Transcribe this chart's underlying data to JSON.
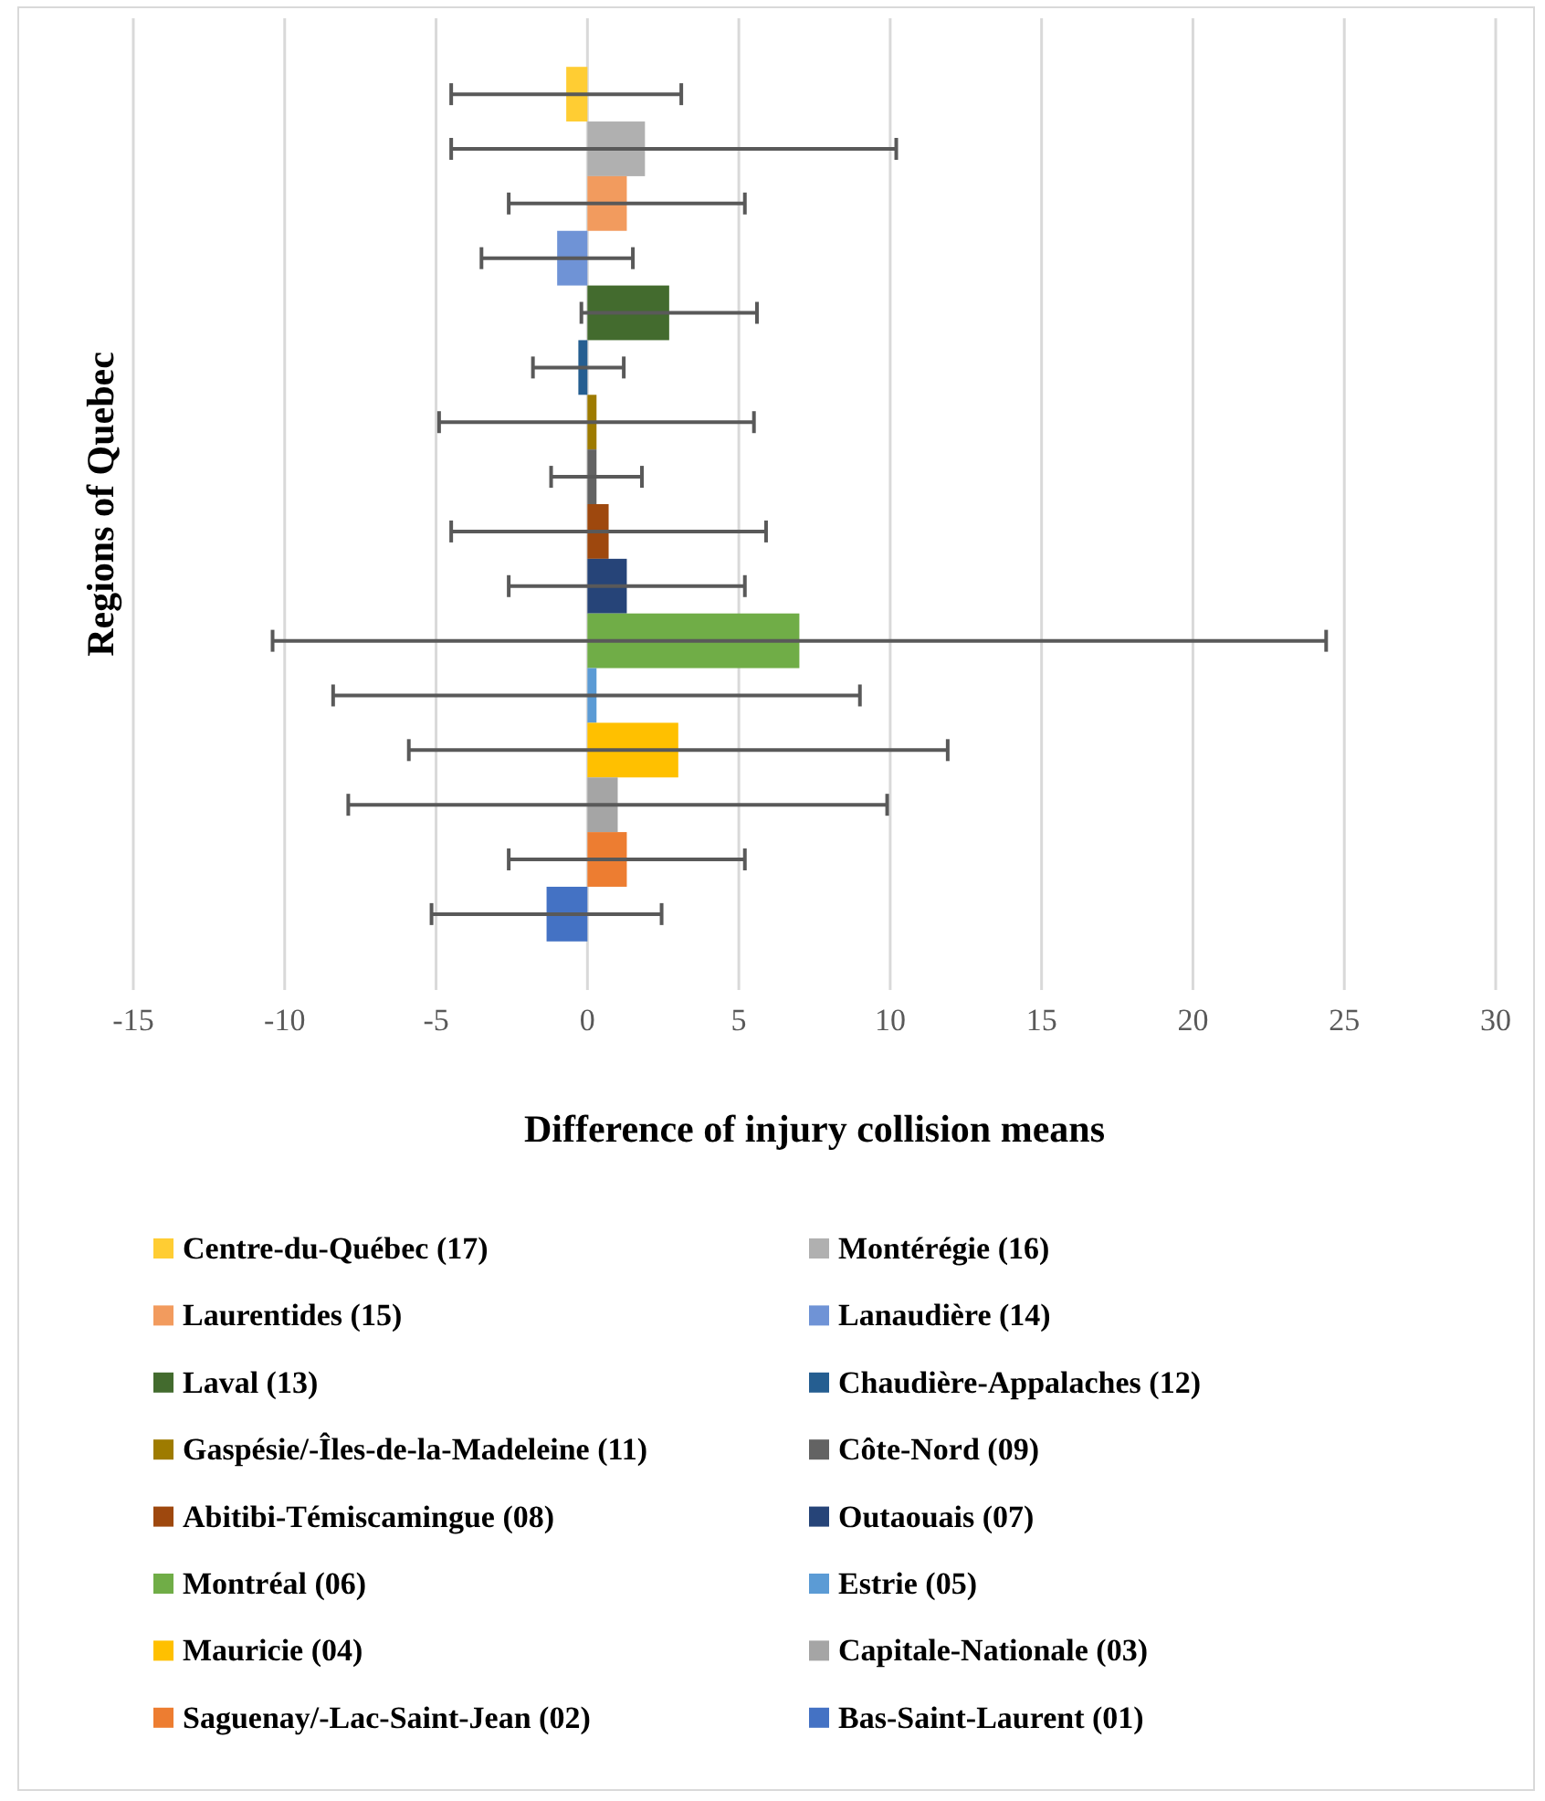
{
  "chart_data": {
    "type": "bar",
    "orientation": "horizontal",
    "xlabel": "Difference of injury collision means",
    "ylabel": "Regions of Quebec",
    "categories": [
      null
    ],
    "xlim": [
      -15,
      30
    ],
    "xticks": [
      -15,
      -10,
      -5,
      0,
      5,
      10,
      15,
      20,
      25,
      30
    ],
    "grid": "x",
    "legend": "bottom",
    "series": [
      {
        "name": "Centre-du-Québec (17)",
        "color": "#ffcd33",
        "values": [
          -0.7
        ],
        "errors": [
          3.8
        ]
      },
      {
        "name": "Montérégie (16)",
        "color": "#b0b0b0",
        "values": [
          1.9
        ],
        "errors": [
          [
            -4.5,
            10.2
          ]
        ]
      },
      {
        "name": "Laurentides (15)",
        "color": "#f29b5e",
        "values": [
          1.3
        ],
        "errors": [
          3.9
        ]
      },
      {
        "name": "Lanaudière (14)",
        "color": "#6f93d6",
        "values": [
          -1.0
        ],
        "errors": [
          2.5
        ]
      },
      {
        "name": "Laval (13)",
        "color": "#436b2e",
        "values": [
          2.7
        ],
        "errors": [
          2.9
        ]
      },
      {
        "name": "Chaudière-Appalaches (12)",
        "color": "#255e91",
        "values": [
          -0.3
        ],
        "errors": [
          1.5
        ]
      },
      {
        "name": "Gaspésie/-Îles-de-la-Madeleine (11)",
        "color": "#9e7b00",
        "values": [
          0.3
        ],
        "errors": [
          5.2
        ]
      },
      {
        "name": "Côte-Nord (09)",
        "color": "#636363",
        "values": [
          0.3
        ],
        "errors": [
          1.5
        ]
      },
      {
        "name": "Abitibi-Témiscamingue (08)",
        "color": "#9e480e",
        "values": [
          0.7
        ],
        "errors": [
          5.2
        ]
      },
      {
        "name": "Outaouais (07)",
        "color": "#264478",
        "values": [
          1.3
        ],
        "errors": [
          3.9
        ]
      },
      {
        "name": "Montréal (06)",
        "color": "#70ad47",
        "values": [
          7.0
        ],
        "errors": [
          17.4
        ]
      },
      {
        "name": "Estrie (05)",
        "color": "#5b9bd5",
        "values": [
          0.3
        ],
        "errors": [
          8.7
        ]
      },
      {
        "name": "Mauricie (04)",
        "color": "#ffc000",
        "values": [
          3.0
        ],
        "errors": [
          8.9
        ]
      },
      {
        "name": "Capitale-Nationale (03)",
        "color": "#a5a5a5",
        "values": [
          1.0
        ],
        "errors": [
          8.9
        ]
      },
      {
        "name": "Saguenay/-Lac-Saint-Jean (02)",
        "color": "#ed7d31",
        "values": [
          1.3
        ],
        "errors": [
          3.9
        ]
      },
      {
        "name": "Bas-Saint-Laurent (01)",
        "color": "#4472c4",
        "values": [
          -1.35
        ],
        "errors": [
          3.8
        ]
      }
    ]
  }
}
